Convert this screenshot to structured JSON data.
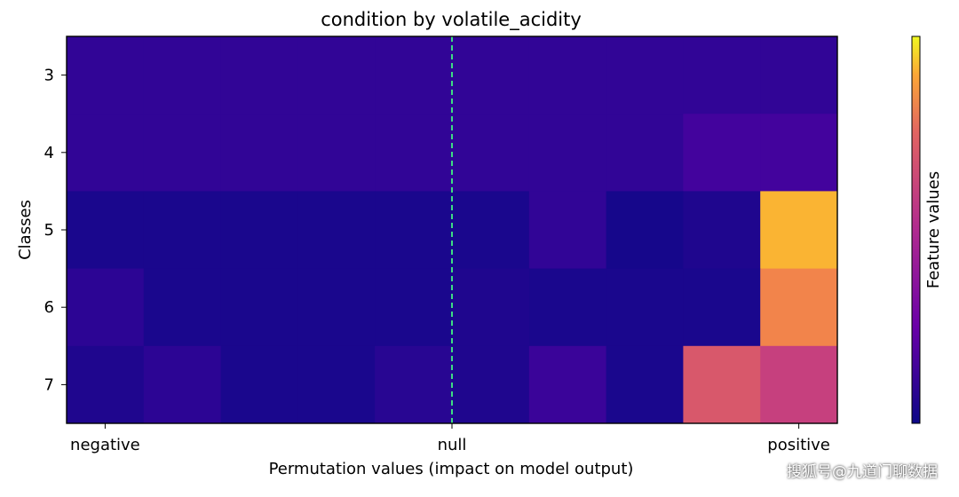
{
  "chart_data": {
    "type": "heatmap",
    "title": "condition by volatile_acidity",
    "xlabel": "Permutation values (impact on model output)",
    "ylabel": "Classes",
    "x_tick_labels": [
      "negative",
      "null",
      "positive"
    ],
    "rows": [
      "3",
      "4",
      "5",
      "6",
      "7"
    ],
    "n_cols": 10,
    "values": [
      [
        0.08,
        0.08,
        0.08,
        0.08,
        0.08,
        0.08,
        0.08,
        0.08,
        0.08,
        0.08
      ],
      [
        0.08,
        0.08,
        0.08,
        0.08,
        0.08,
        0.08,
        0.08,
        0.08,
        0.12,
        0.12
      ],
      [
        0.03,
        0.03,
        0.03,
        0.03,
        0.03,
        0.03,
        0.08,
        0.02,
        0.04,
        0.95
      ],
      [
        0.07,
        0.03,
        0.03,
        0.03,
        0.03,
        0.04,
        0.03,
        0.03,
        0.03,
        0.88
      ],
      [
        0.04,
        0.07,
        0.03,
        0.03,
        0.06,
        0.04,
        0.1,
        0.03,
        0.7,
        0.6
      ]
    ],
    "null_line": {
      "style": "dashed",
      "color": "#3ddc84"
    },
    "colormap": "plasma",
    "colorbar_label": "Feature values",
    "grid": false
  },
  "watermark": "搜狐号@九道门聊数据"
}
